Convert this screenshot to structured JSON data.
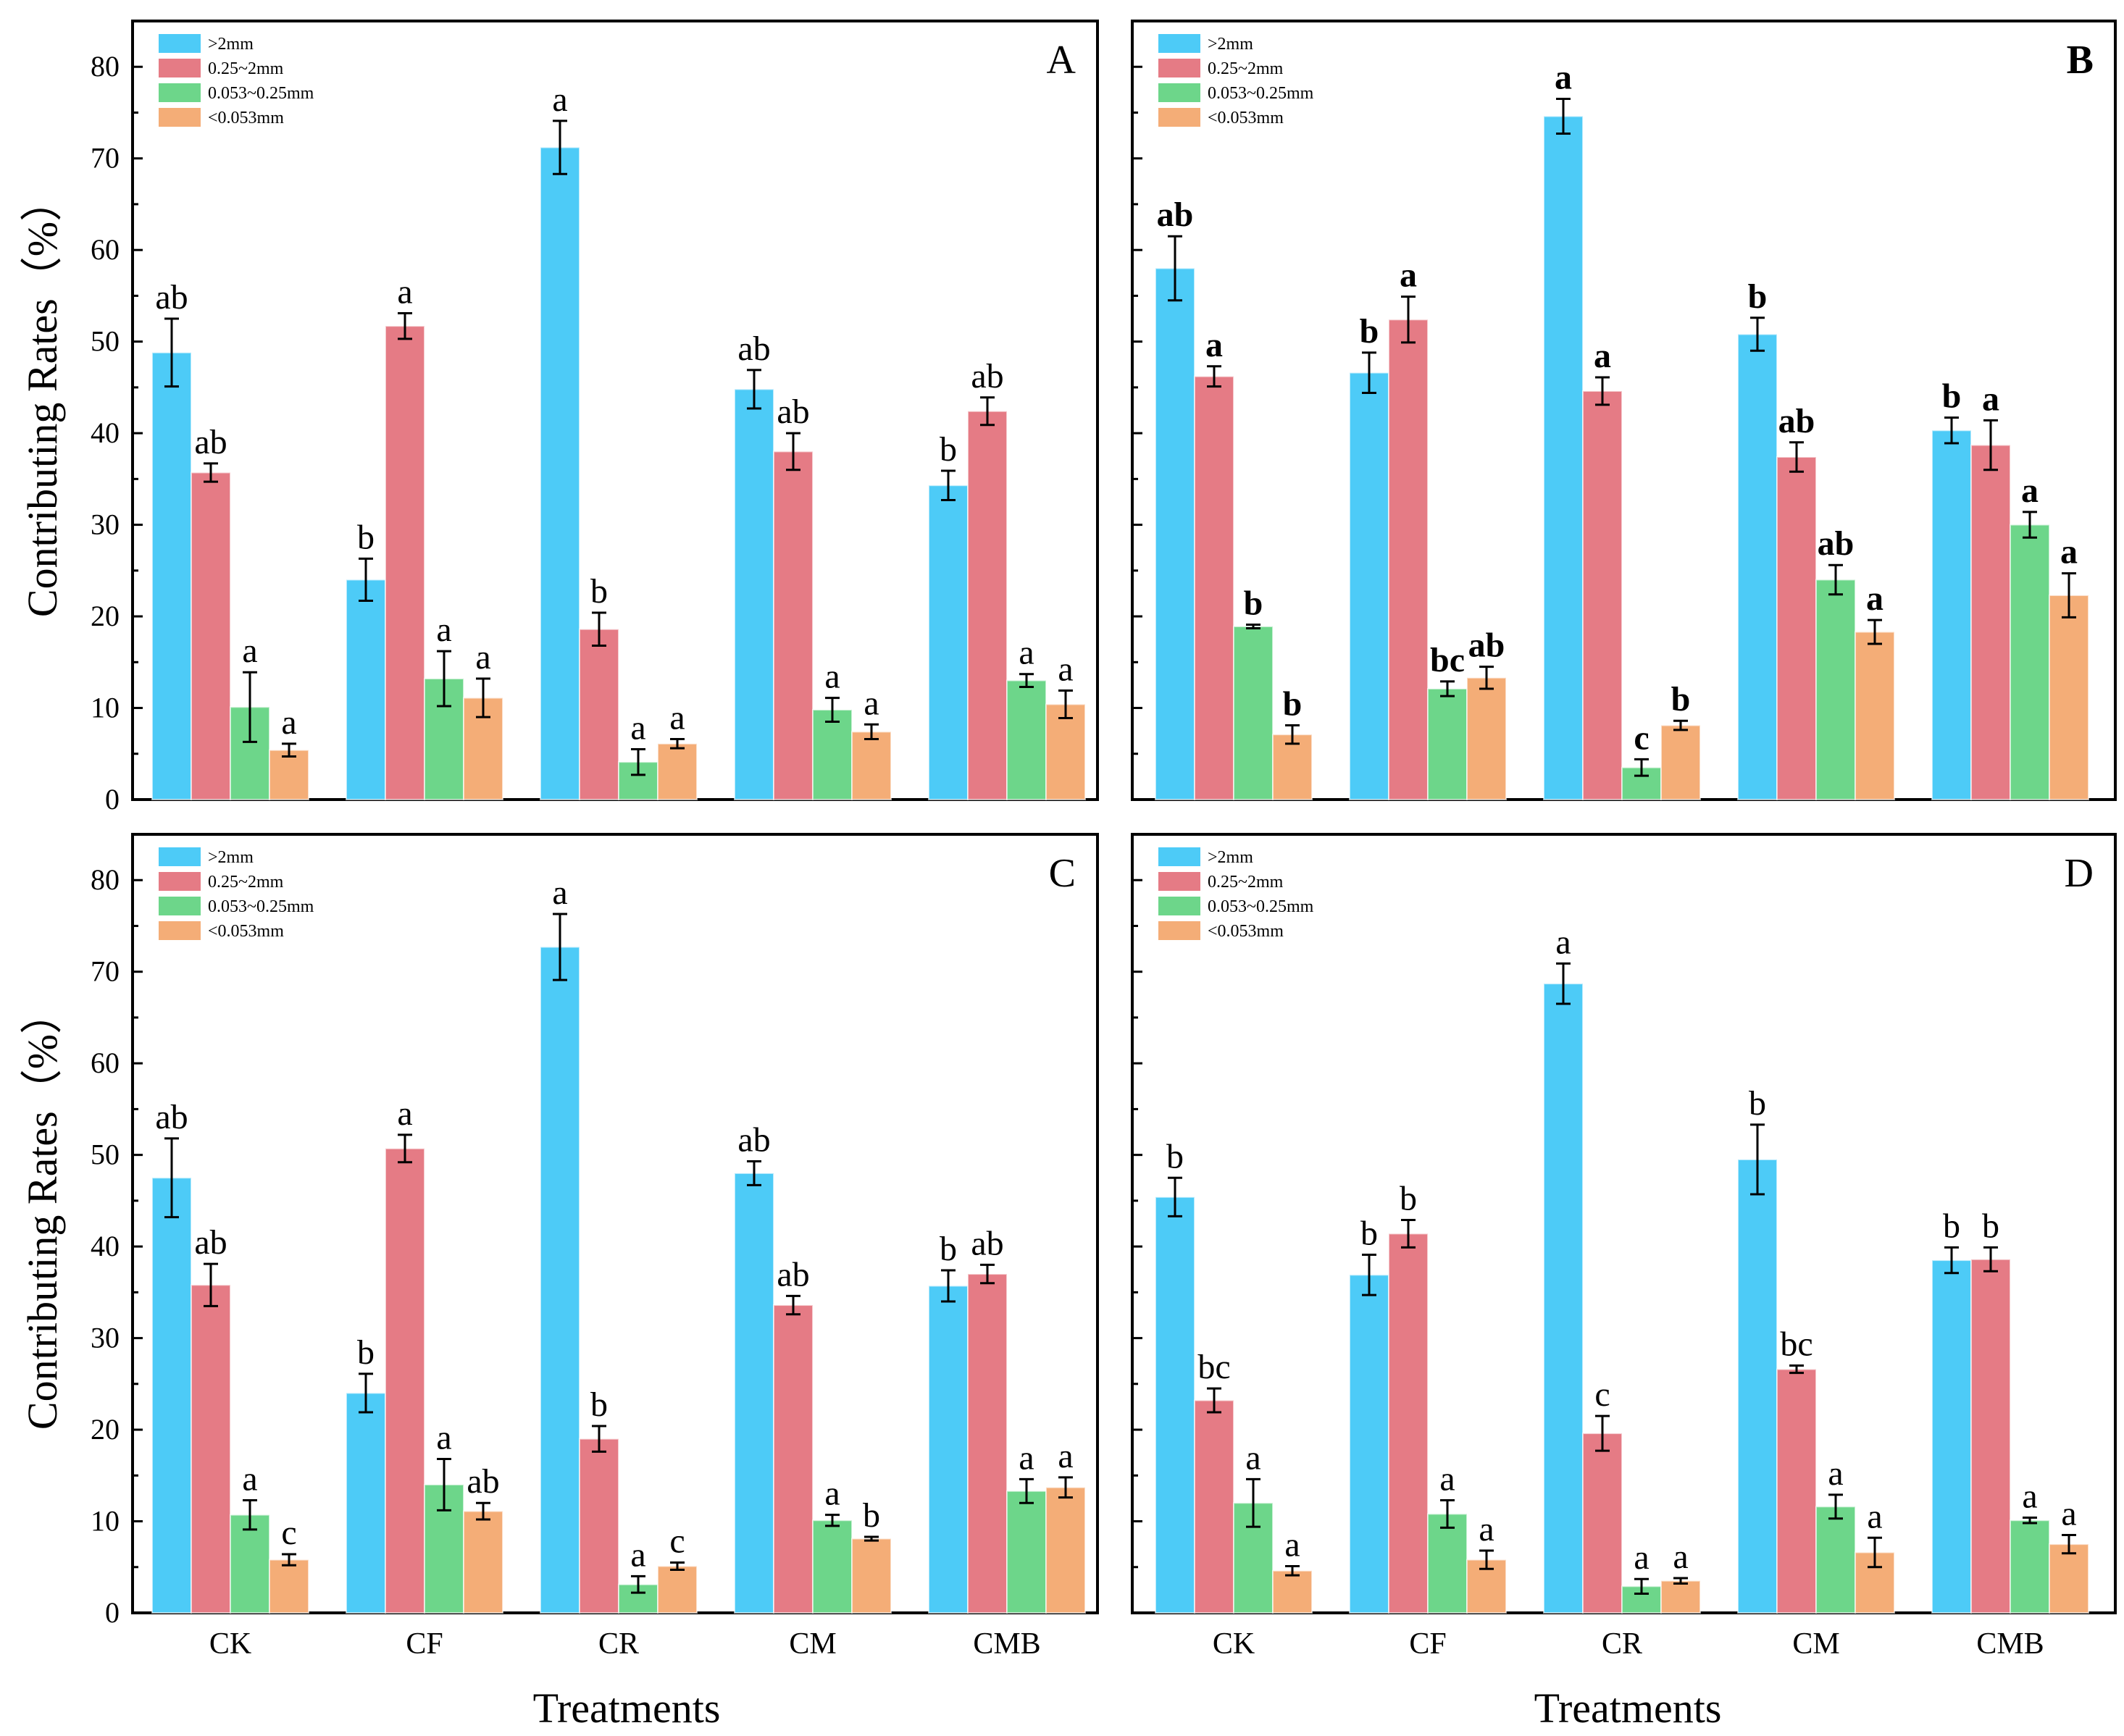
{
  "figure": {
    "y_axis_label": "Contributing Rates（%）",
    "x_axis_label": "Treatments"
  },
  "series_colors": {
    ">2mm": "#4dcbf7",
    "0.25~2mm": "#e57b85",
    "0.053~0.25mm": "#6dd68a",
    "<0.053mm": "#f4ad77"
  },
  "chart_data": [
    {
      "panel": "A",
      "type": "bar",
      "categories": [
        "CK",
        "CF",
        "CR",
        "CM",
        "CMB"
      ],
      "ylim": [
        0,
        85
      ],
      "yticks": [
        0,
        10,
        20,
        30,
        40,
        50,
        60,
        70,
        80
      ],
      "show_tick_labels": true,
      "bold_letters": false,
      "series": [
        {
          "name": ">2mm",
          "values": [
            48.8,
            24.0,
            71.2,
            44.8,
            34.3
          ],
          "errors": [
            3.7,
            2.3,
            2.9,
            2.1,
            1.6
          ],
          "letters": [
            "ab",
            "b",
            "a",
            "ab",
            "b"
          ]
        },
        {
          "name": "0.25~2mm",
          "values": [
            35.7,
            51.7,
            18.6,
            38.0,
            42.4
          ],
          "errors": [
            1.0,
            1.4,
            1.8,
            2.0,
            1.5
          ],
          "letters": [
            "ab",
            "a",
            "b",
            "ab",
            "ab"
          ]
        },
        {
          "name": "0.053~0.25mm",
          "values": [
            10.1,
            13.2,
            4.1,
            9.8,
            13.0
          ],
          "errors": [
            3.8,
            3.0,
            1.4,
            1.3,
            0.7
          ],
          "letters": [
            "a",
            "a",
            "a",
            "a",
            "a"
          ]
        },
        {
          "name": "<0.053mm",
          "values": [
            5.4,
            11.1,
            6.1,
            7.4,
            10.4
          ],
          "errors": [
            0.7,
            2.1,
            0.5,
            0.8,
            1.5
          ],
          "letters": [
            "a",
            "a",
            "a",
            "a",
            "a"
          ]
        }
      ]
    },
    {
      "panel": "B",
      "type": "bar",
      "categories": [
        "CK",
        "CF",
        "CR",
        "CM",
        "CMB"
      ],
      "ylim": [
        0,
        85
      ],
      "yticks": [
        0,
        10,
        20,
        30,
        40,
        50,
        60,
        70,
        80
      ],
      "show_tick_labels": false,
      "bold_letters": true,
      "series": [
        {
          "name": ">2mm",
          "values": [
            58.0,
            46.6,
            74.6,
            50.8,
            40.3
          ],
          "errors": [
            3.5,
            2.2,
            1.9,
            1.8,
            1.4
          ],
          "letters": [
            "ab",
            "b",
            "a",
            "b",
            "b"
          ]
        },
        {
          "name": "0.25~2mm",
          "values": [
            46.2,
            52.4,
            44.6,
            37.4,
            38.7
          ],
          "errors": [
            1.1,
            2.5,
            1.5,
            1.6,
            2.7
          ],
          "letters": [
            "a",
            "a",
            "a",
            "ab",
            "a"
          ]
        },
        {
          "name": "0.053~0.25mm",
          "values": [
            18.9,
            12.1,
            3.5,
            24.0,
            30.0
          ],
          "errors": [
            0.2,
            0.8,
            0.9,
            1.6,
            1.4
          ],
          "letters": [
            "b",
            "bc",
            "c",
            "ab",
            "a"
          ]
        },
        {
          "name": "<0.053mm",
          "values": [
            7.1,
            13.3,
            8.1,
            18.3,
            22.3
          ],
          "errors": [
            1.0,
            1.2,
            0.5,
            1.3,
            2.4
          ],
          "letters": [
            "b",
            "ab",
            "b",
            "a",
            "a"
          ]
        }
      ]
    },
    {
      "panel": "C",
      "type": "bar",
      "categories": [
        "CK",
        "CF",
        "CR",
        "CM",
        "CMB"
      ],
      "ylim": [
        0,
        85
      ],
      "yticks": [
        0,
        10,
        20,
        30,
        40,
        50,
        60,
        70,
        80
      ],
      "show_tick_labels": true,
      "bold_letters": false,
      "series": [
        {
          "name": ">2mm",
          "values": [
            47.5,
            24.0,
            72.7,
            48.0,
            35.7
          ],
          "errors": [
            4.3,
            2.1,
            3.6,
            1.3,
            1.7
          ],
          "letters": [
            "ab",
            "b",
            "a",
            "ab",
            "b"
          ]
        },
        {
          "name": "0.25~2mm",
          "values": [
            35.8,
            50.7,
            19.0,
            33.6,
            37.0
          ],
          "errors": [
            2.3,
            1.5,
            1.4,
            1.0,
            1.0
          ],
          "letters": [
            "ab",
            "a",
            "b",
            "ab",
            "ab"
          ]
        },
        {
          "name": "0.053~0.25mm",
          "values": [
            10.7,
            14.0,
            3.1,
            10.1,
            13.3
          ],
          "errors": [
            1.6,
            2.8,
            0.9,
            0.6,
            1.3
          ],
          "letters": [
            "a",
            "a",
            "a",
            "a",
            "a"
          ]
        },
        {
          "name": "<0.053mm",
          "values": [
            5.8,
            11.1,
            5.1,
            8.1,
            13.7
          ],
          "errors": [
            0.6,
            0.9,
            0.4,
            0.2,
            1.1
          ],
          "letters": [
            "c",
            "ab",
            "c",
            "b",
            "a"
          ]
        }
      ]
    },
    {
      "panel": "D",
      "type": "bar",
      "categories": [
        "CK",
        "CF",
        "CR",
        "CM",
        "CMB"
      ],
      "ylim": [
        0,
        85
      ],
      "yticks": [
        0,
        10,
        20,
        30,
        40,
        50,
        60,
        70,
        80
      ],
      "show_tick_labels": false,
      "bold_letters": false,
      "series": [
        {
          "name": ">2mm",
          "values": [
            45.4,
            36.9,
            68.7,
            49.5,
            38.5
          ],
          "errors": [
            2.1,
            2.2,
            2.2,
            3.8,
            1.4
          ],
          "letters": [
            "b",
            "b",
            "a",
            "b",
            "b"
          ]
        },
        {
          "name": "0.25~2mm",
          "values": [
            23.2,
            41.4,
            19.6,
            26.6,
            38.6
          ],
          "errors": [
            1.3,
            1.5,
            1.9,
            0.4,
            1.3
          ],
          "letters": [
            "bc",
            "b",
            "c",
            "bc",
            "b"
          ]
        },
        {
          "name": "0.053~0.25mm",
          "values": [
            12.0,
            10.8,
            2.9,
            11.6,
            10.1
          ],
          "errors": [
            2.6,
            1.5,
            0.8,
            1.3,
            0.3
          ],
          "letters": [
            "a",
            "a",
            "a",
            "a",
            "a"
          ]
        },
        {
          "name": "<0.053mm",
          "values": [
            4.6,
            5.8,
            3.5,
            6.6,
            7.5
          ],
          "errors": [
            0.5,
            1.0,
            0.3,
            1.6,
            1.0
          ],
          "letters": [
            "a",
            "a",
            "a",
            "a",
            "a"
          ]
        }
      ]
    }
  ]
}
